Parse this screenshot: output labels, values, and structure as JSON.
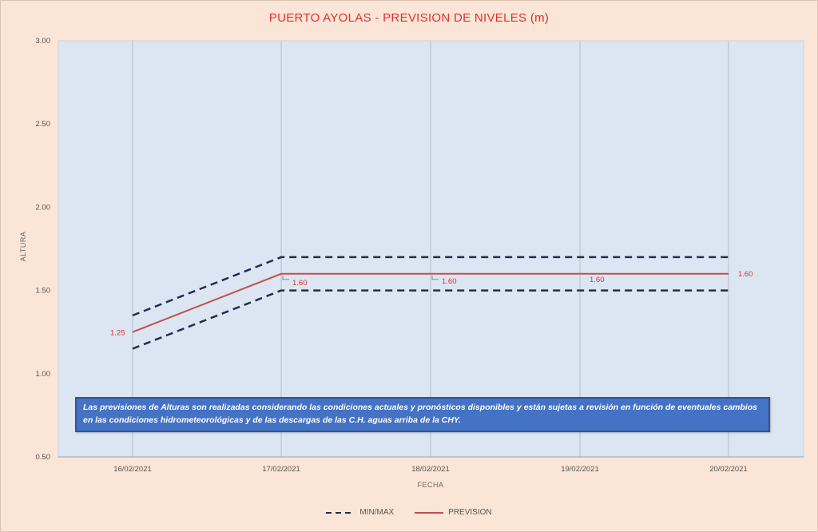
{
  "chart_data": {
    "type": "line",
    "title": "PUERTO AYOLAS - PREVISION DE NIVELES (m)",
    "xlabel": "FECHA",
    "ylabel": "ALTURA",
    "categories": [
      "16/02/2021",
      "17/02/2021",
      "18/02/2021",
      "19/02/2021",
      "20/02/2021"
    ],
    "ylim": [
      0.5,
      3.0
    ],
    "yticks": [
      "0.50",
      "1.00",
      "1.50",
      "2.00",
      "2.50",
      "3.00"
    ],
    "series": [
      {
        "name": "PREVISION",
        "values": [
          1.25,
          1.6,
          1.6,
          1.6,
          1.6
        ],
        "labels": [
          "1.25",
          "1.60",
          "1.60",
          "1.60",
          "1.60"
        ],
        "color": "#c0504d"
      },
      {
        "name": "MIN/MAX",
        "role": "max",
        "values": [
          1.35,
          1.7,
          1.7,
          1.7,
          1.7
        ],
        "color": "#1f2d50"
      },
      {
        "name": "MIN/MAX",
        "role": "min",
        "values": [
          1.15,
          1.5,
          1.5,
          1.5,
          1.5
        ],
        "color": "#1f2d50"
      }
    ],
    "legend": [
      "MIN/MAX",
      "PREVISION"
    ],
    "legend_position": "bottom",
    "grid": "vertical",
    "plot_background": "#dce6f2",
    "background": "#fbe5d6"
  },
  "notice": {
    "text": "Las previsiones de Alturas son realizadas considerando las condiciones actuales y pronósticos disponibles y están sujetas a revisión en función de eventuales cambios en las condiciones hidrometeorológicas y de las descargas de las C.H. aguas arriba de la CHY."
  }
}
